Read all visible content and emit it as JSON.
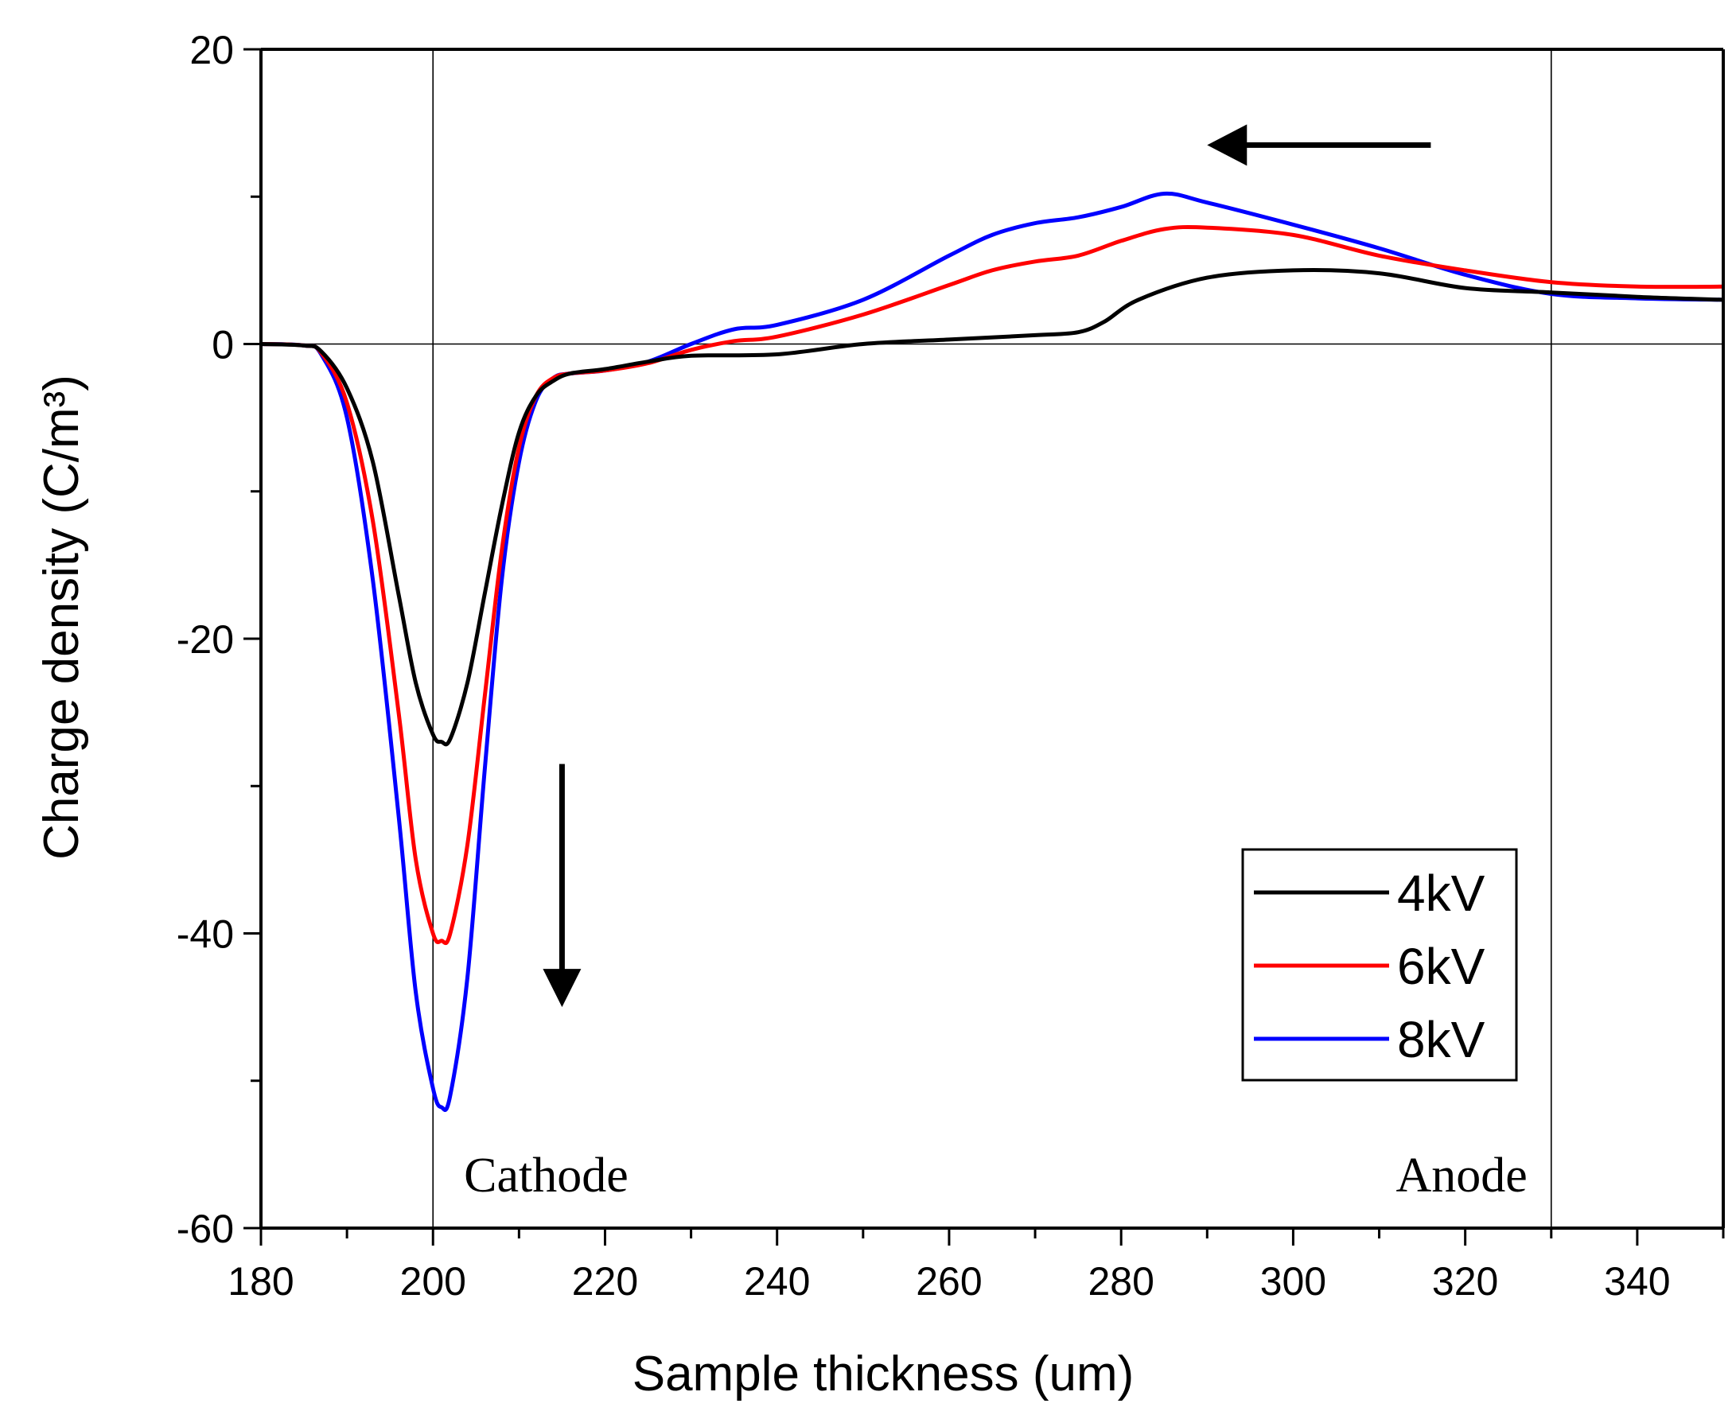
{
  "chart_data": {
    "type": "line",
    "title": "",
    "xlabel": "Sample thickness (um)",
    "ylabel": "Charge density (C/m³)",
    "xlim": [
      180,
      350
    ],
    "ylim": [
      -60,
      20
    ],
    "xticks": [
      180,
      200,
      220,
      240,
      260,
      280,
      300,
      320,
      340
    ],
    "yticks": [
      20,
      0,
      -20,
      -40,
      -60
    ],
    "grid": false,
    "legend_position": "bottom-right",
    "reference_lines": {
      "horizontal_y": 0,
      "vertical_x": [
        200,
        330
      ]
    },
    "annotations": [
      {
        "text": "Cathode",
        "x": 215,
        "y": -56
      },
      {
        "text": "Anode",
        "x": 322,
        "y": -56
      }
    ],
    "arrows": [
      {
        "from": [
          215,
          -28.5
        ],
        "to": [
          215,
          -45
        ],
        "direction": "down"
      },
      {
        "from": [
          316,
          13.5
        ],
        "to": [
          290,
          13.5
        ],
        "direction": "left"
      }
    ],
    "series": [
      {
        "name": "4kV",
        "color": "#000000",
        "x": [
          180,
          185,
          187,
          190,
          193,
          196,
          198,
          200,
          201,
          202,
          204,
          206,
          208,
          210,
          212,
          214,
          216,
          220,
          225,
          230,
          240,
          250,
          260,
          270,
          275,
          278,
          282,
          290,
          300,
          310,
          320,
          330,
          340,
          350
        ],
        "y": [
          0,
          -0.1,
          -0.5,
          -3,
          -8,
          -17,
          -23,
          -26.5,
          -27,
          -26.8,
          -23,
          -17,
          -11,
          -6,
          -3.5,
          -2.5,
          -2,
          -1.7,
          -1.2,
          -0.8,
          -0.7,
          0,
          0.3,
          0.6,
          0.8,
          1.5,
          3,
          4.5,
          5,
          4.8,
          3.8,
          3.5,
          3.2,
          3
        ]
      },
      {
        "name": "6kV",
        "color": "#ff0000",
        "x": [
          180,
          185,
          187,
          190,
          193,
          196,
          198,
          200,
          201,
          202,
          204,
          206,
          208,
          210,
          212,
          214,
          216,
          220,
          225,
          230,
          235,
          240,
          250,
          260,
          265,
          270,
          275,
          280,
          285,
          290,
          300,
          310,
          320,
          330,
          340,
          350
        ],
        "y": [
          0,
          -0.1,
          -0.6,
          -4,
          -12,
          -25,
          -35,
          -40,
          -40.5,
          -40,
          -34,
          -24,
          -14,
          -7,
          -3.5,
          -2.3,
          -2,
          -1.8,
          -1.3,
          -0.4,
          0.2,
          0.5,
          2,
          4,
          5,
          5.6,
          6,
          7,
          7.8,
          7.9,
          7.4,
          6,
          5,
          4.2,
          3.9,
          3.9
        ]
      },
      {
        "name": "8kV",
        "color": "#0000ff",
        "x": [
          180,
          185,
          187,
          190,
          193,
          196,
          198,
          200,
          201,
          202,
          204,
          206,
          208,
          210,
          212,
          214,
          216,
          220,
          225,
          230,
          235,
          240,
          250,
          260,
          265,
          270,
          275,
          280,
          285,
          290,
          300,
          310,
          320,
          330,
          340,
          350
        ],
        "y": [
          0,
          -0.1,
          -0.7,
          -5,
          -16,
          -32,
          -44,
          -50.5,
          -51.8,
          -51,
          -43,
          -29,
          -16,
          -8,
          -3.8,
          -2.3,
          -2,
          -1.8,
          -1.2,
          0,
          1,
          1.3,
          3,
          6,
          7.4,
          8.2,
          8.6,
          9.3,
          10.2,
          9.6,
          8.1,
          6.5,
          4.7,
          3.4,
          3.1,
          3
        ]
      }
    ]
  }
}
